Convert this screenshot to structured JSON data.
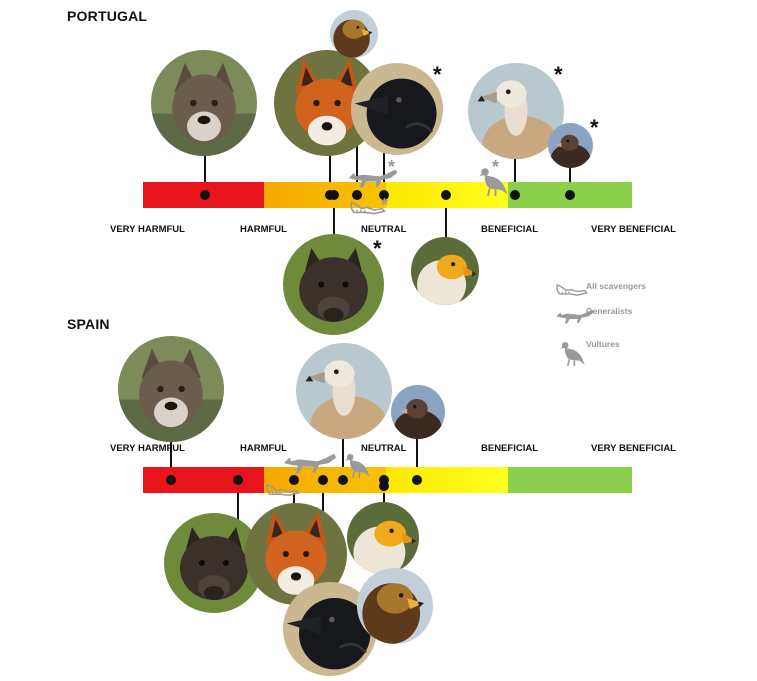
{
  "portugal": {
    "title": "PORTUGAL",
    "scale": [
      "VERY HARMFUL",
      "HARMFUL",
      "NEUTRAL",
      "BENEFICIAL",
      "VERY BENEFICIAL"
    ],
    "species": [
      {
        "name": "wolf",
        "rating": "harmful-low"
      },
      {
        "name": "fox",
        "rating": "harmful-high"
      },
      {
        "name": "golden-eagle",
        "rating": "neutral-low"
      },
      {
        "name": "raven",
        "rating": "neutral-low",
        "asterisk": "*"
      },
      {
        "name": "wild-boar",
        "rating": "harmful-high",
        "asterisk": "*"
      },
      {
        "name": "egyptian-vulture",
        "rating": "neutral-high"
      },
      {
        "name": "griffon-vulture",
        "rating": "beneficial-low",
        "asterisk": "*"
      },
      {
        "name": "cinereous-vulture",
        "rating": "beneficial",
        "asterisk": "*"
      }
    ],
    "group_markers": [
      {
        "group": "generalists",
        "asterisk": "*"
      },
      {
        "group": "all-scavengers",
        "asterisk": "*"
      },
      {
        "group": "vultures",
        "asterisk": "*"
      }
    ]
  },
  "spain": {
    "title": "SPAIN",
    "scale": [
      "VERY HARMFUL",
      "HARMFUL",
      "NEUTRAL",
      "BENEFICIAL",
      "VERY BENEFICIAL"
    ],
    "species": [
      {
        "name": "wolf",
        "rating": "very-harmful"
      },
      {
        "name": "wild-boar",
        "rating": "very-harmful-high"
      },
      {
        "name": "fox",
        "rating": "harmful"
      },
      {
        "name": "raven",
        "rating": "harmful"
      },
      {
        "name": "griffon-vulture",
        "rating": "harmful-high"
      },
      {
        "name": "egyptian-vulture",
        "rating": "neutral-low"
      },
      {
        "name": "golden-eagle",
        "rating": "neutral-low"
      },
      {
        "name": "cinereous-vulture",
        "rating": "neutral"
      }
    ]
  },
  "legend": [
    {
      "icon": "all-scavengers-icon",
      "label": "All scavengers"
    },
    {
      "icon": "generalists-icon",
      "label": "Generalists"
    },
    {
      "icon": "vultures-icon",
      "label": "Vultures"
    }
  ],
  "colors": {
    "very_harmful": "#e8141c",
    "harmful": "#f6a800",
    "neutral": "#ffff1e",
    "beneficial": "#8bcf4a",
    "pin": "#111111",
    "silhouette": "#9a9a9a"
  }
}
